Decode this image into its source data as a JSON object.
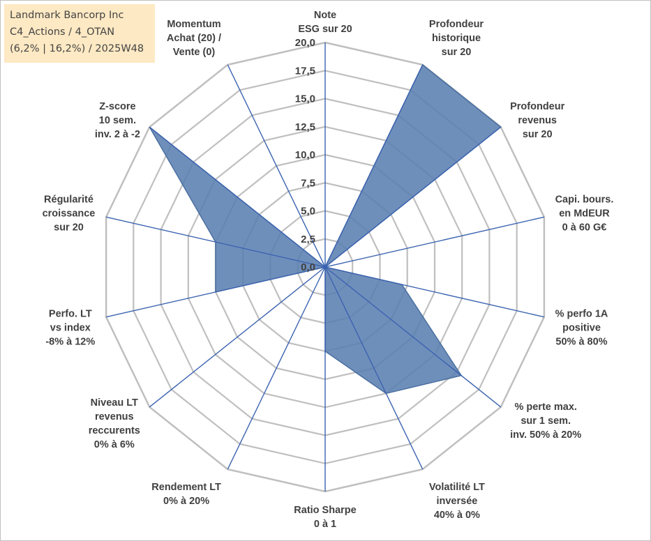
{
  "header": {
    "company": "Landmark Bancorp Inc",
    "portfolio": "C4_Actions / 4_OTAN",
    "stats": "(6,2% | 16,2%) / 2025W48"
  },
  "chart_data": {
    "type": "radar",
    "title": "Landmark Bancorp Inc",
    "rmin": 0,
    "rmax": 20,
    "ticks": [
      "0,0",
      "2,5",
      "5,0",
      "7,5",
      "10,0",
      "12,5",
      "15,0",
      "17,5",
      "20,0"
    ],
    "axes": [
      {
        "label": [
          "Note",
          "ESG sur 20"
        ],
        "value": 0
      },
      {
        "label": [
          "Profondeur",
          "historique",
          "sur 20"
        ],
        "value": 20
      },
      {
        "label": [
          "Profondeur",
          "revenus",
          "sur 20"
        ],
        "value": 20
      },
      {
        "label": [
          "Capi. bours.",
          "en MdEUR",
          "0 à 60 G€"
        ],
        "value": 0
      },
      {
        "label": [
          "% perfo 1A",
          "positive",
          "50% à 80%"
        ],
        "value": 7
      },
      {
        "label": [
          "% perte max.",
          "sur 1 sem.",
          "inv. 50% à 20%"
        ],
        "value": 15.5
      },
      {
        "label": [
          "Volatilité LT",
          "inversée",
          "40% à 0%"
        ],
        "value": 12.5
      },
      {
        "label": [
          "Ratio Sharpe",
          "0 à 1"
        ],
        "value": 7.5
      },
      {
        "label": [
          "Rendement LT",
          "0% à 20%"
        ],
        "value": 0
      },
      {
        "label": [
          "Niveau LT",
          "revenus",
          "reccurents",
          "0% à 6%"
        ],
        "value": 0
      },
      {
        "label": [
          "Perfo. LT",
          "vs index",
          "-8% à 12%"
        ],
        "value": 10
      },
      {
        "label": [
          "Régularité",
          "croissance",
          "sur 20"
        ],
        "value": 10
      },
      {
        "label": [
          "Z-score",
          "10 sem.",
          "inv. 2 à -2"
        ],
        "value": 20
      },
      {
        "label": [
          "Momentum",
          "Achat (20) /",
          "Vente (0)"
        ],
        "value": 0
      }
    ],
    "series": [
      {
        "name": "Landmark Bancorp Inc",
        "values": [
          0,
          20,
          20,
          0,
          7,
          15.5,
          12.5,
          7.5,
          0,
          0,
          10,
          10,
          20,
          0
        ]
      }
    ],
    "colors": {
      "fill": "#5b80b2",
      "stroke": "#4a6fa0",
      "spoke": "#3b63b0",
      "grid": "#bfbfbf"
    }
  }
}
